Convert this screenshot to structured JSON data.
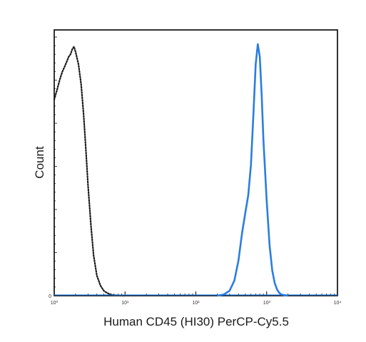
{
  "chart_data": {
    "type": "line",
    "title": "",
    "xlabel": "Human CD45 (HI30) PerCP-Cy5.5",
    "ylabel": "Count",
    "x_scale": "log",
    "xlim": [
      1,
      10000
    ],
    "ylim": [
      0,
      100
    ],
    "x_ticks": [
      {
        "value": 1,
        "label": "10⁰"
      },
      {
        "value": 10,
        "label": "10¹"
      },
      {
        "value": 100,
        "label": "10²"
      },
      {
        "value": 1000,
        "label": "10³"
      },
      {
        "value": 10000,
        "label": "10⁴"
      }
    ],
    "y_ticks": [
      {
        "value": 0,
        "label": "0"
      }
    ],
    "grid": false,
    "legend": "none",
    "series": [
      {
        "style": "dotted",
        "color": "#1a1a1a",
        "x": [
          1.0,
          1.1,
          1.2,
          1.3,
          1.4,
          1.5,
          1.6,
          1.7,
          1.8,
          1.9,
          2.0,
          2.2,
          2.4,
          2.6,
          2.8,
          3.0,
          3.3,
          3.6,
          4.0,
          4.5,
          5.0,
          5.5,
          6.0,
          6.5,
          7.0,
          8.0,
          9.0,
          10.0
        ],
        "y": [
          78,
          82,
          86,
          89,
          91,
          93,
          95,
          96,
          98,
          99,
          97,
          92,
          84,
          72,
          58,
          44,
          28,
          16,
          8,
          4,
          2,
          1.2,
          0.7,
          0.4,
          0.2,
          0.1,
          0.05,
          0
        ]
      },
      {
        "style": "solid",
        "color": "#2a7de1",
        "x": [
          200,
          250,
          300,
          350,
          400,
          450,
          500,
          550,
          600,
          650,
          700,
          750,
          800,
          850,
          900,
          1000,
          1100,
          1200,
          1300,
          1400,
          1500,
          1600,
          1800,
          2000
        ],
        "y": [
          0,
          0.5,
          2,
          6,
          14,
          25,
          33,
          40,
          52,
          72,
          92,
          100,
          95,
          80,
          62,
          38,
          20,
          10,
          5,
          2.5,
          1.2,
          0.5,
          0.2,
          0
        ]
      }
    ]
  }
}
